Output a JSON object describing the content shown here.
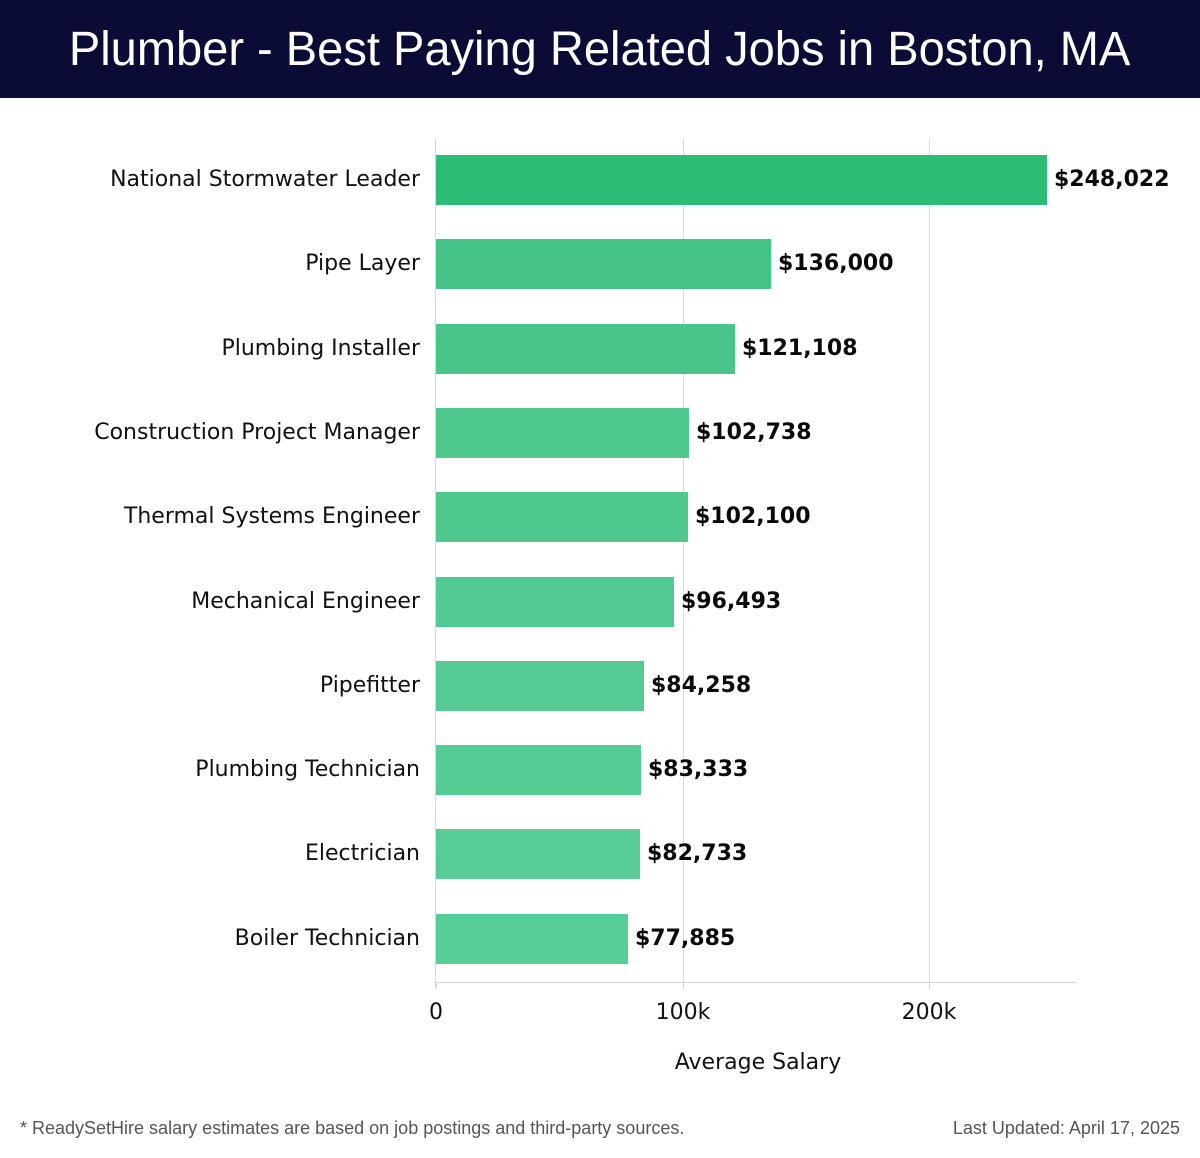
{
  "header": {
    "title": "Plumber - Best Paying Related Jobs in Boston, MA"
  },
  "chart_data": {
    "type": "bar",
    "orientation": "horizontal",
    "title": "Plumber - Best Paying Related Jobs in Boston, MA",
    "xlabel": "Average Salary",
    "ylabel": "",
    "categories": [
      "National Stormwater Leader",
      "Pipe Layer",
      "Plumbing Installer",
      "Construction Project Manager",
      "Thermal Systems Engineer",
      "Mechanical Engineer",
      "Pipefitter",
      "Plumbing Technician",
      "Electrician",
      "Boiler Technician"
    ],
    "values": [
      248022,
      136000,
      121108,
      102738,
      102100,
      96493,
      84258,
      83333,
      82733,
      77885
    ],
    "value_labels": [
      "$248,022",
      "$136,000",
      "$121,108",
      "$102,738",
      "$102,100",
      "$96,493",
      "$84,258",
      "$83,333",
      "$82,733",
      "$77,885"
    ],
    "xticks": [
      0,
      100000,
      200000
    ],
    "xtick_labels": [
      "0",
      "100k",
      "200k"
    ],
    "xlim": [
      0,
      260000
    ],
    "grid": {
      "x": true,
      "y": false
    },
    "legend": null,
    "colors": [
      "#2bbd76",
      "#44c487",
      "#48c68a",
      "#4fc98e",
      "#4fc98e",
      "#53ca92",
      "#55cb93",
      "#56cc94",
      "#57cc95",
      "#59cd96"
    ]
  },
  "footer": {
    "note": "* ReadySetHire salary estimates are based on job postings and third-party sources.",
    "updated": "Last Updated: April 17, 2025"
  }
}
